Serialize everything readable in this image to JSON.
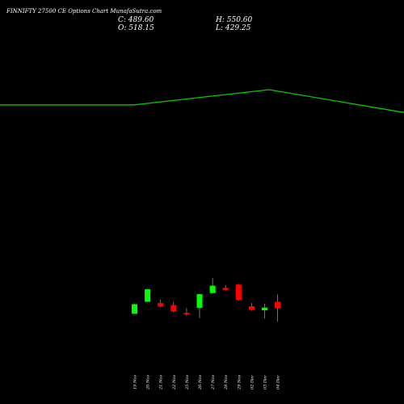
{
  "title": "FINNIFTY 27500  CE Options  Chart MunafaSutra.com",
  "ohlc": {
    "close": "C: 489.60",
    "open": "O: 518.15",
    "high": "H: 550.60",
    "low": "L: 429.25"
  },
  "colors": {
    "background": "#000000",
    "up": "#00ff00",
    "down": "#ff0000",
    "line": "#00cc00",
    "text": "#ffffff"
  },
  "chart_data": {
    "type": "candlestick",
    "title": "FINNIFTY 27500  CE Options  Chart MunafaSutra.com",
    "categories": [
      "19 Nov",
      "20 Nov",
      "21 Nov",
      "22 Nov",
      "25 Nov",
      "26 Nov",
      "27 Nov",
      "28 Nov",
      "29 Nov",
      "02 Dec",
      "03 Dec",
      "04 Dec"
    ],
    "candles": [
      {
        "date": "19 Nov",
        "open": 464,
        "high": 510,
        "low": 463,
        "close": 507,
        "dir": "up"
      },
      {
        "date": "20 Nov",
        "open": 518,
        "high": 575,
        "low": 517,
        "close": 574,
        "dir": "up"
      },
      {
        "date": "21 Nov",
        "open": 512,
        "high": 526,
        "low": 494,
        "close": 497,
        "dir": "down"
      },
      {
        "date": "22 Nov",
        "open": 503,
        "high": 517,
        "low": 470,
        "close": 475,
        "dir": "down"
      },
      {
        "date": "25 Nov",
        "open": 468,
        "high": 489,
        "low": 456,
        "close": 462,
        "dir": "down"
      },
      {
        "date": "26 Nov",
        "open": 491,
        "high": 553,
        "low": 445,
        "close": 552,
        "dir": "up"
      },
      {
        "date": "27 Nov",
        "open": 557,
        "high": 624,
        "low": 556,
        "close": 590,
        "dir": "up"
      },
      {
        "date": "28 Nov",
        "open": 580,
        "high": 592,
        "low": 569,
        "close": 571,
        "dir": "down"
      },
      {
        "date": "29 Nov",
        "open": 595,
        "high": 597,
        "low": 524,
        "close": 527,
        "dir": "down"
      },
      {
        "date": "02 Dec",
        "open": 498,
        "high": 512,
        "low": 478,
        "close": 482,
        "dir": "down"
      },
      {
        "date": "03 Dec",
        "open": 480,
        "high": 509,
        "low": 443,
        "close": 492,
        "dir": "up"
      },
      {
        "date": "04 Dec",
        "open": 518,
        "high": 551,
        "low": 429,
        "close": 490,
        "dir": "down"
      }
    ],
    "overlay_line": {
      "values": [
        1400,
        1400,
        1400,
        1400,
        1400,
        1400,
        1400,
        1400,
        1400,
        1400,
        1400,
        1400,
        1400,
        1400,
        1400,
        1400,
        1400,
        1400,
        1400,
        1400,
        1400,
        1400,
        1400,
        1400,
        1400,
        1400,
        1400,
        1400,
        1400,
        1400,
        1400,
        1400,
        1400,
        1400,
        1400,
        1400,
        1400,
        1400,
        1400,
        1400,
        1400,
        1400,
        1400,
        1400,
        1400,
        1400,
        1400,
        1400,
        1400,
        1400,
        1400,
        1400,
        1400,
        1400,
        1400,
        1400,
        1400,
        1400,
        1400,
        1400,
        1400,
        1400,
        1400,
        1400,
        1400,
        1400,
        1400,
        1400,
        1400,
        1400,
        1400,
        1400,
        1400,
        1400,
        1400,
        1400,
        1400,
        1400,
        1400,
        1400,
        1400,
        1400,
        1400,
        1400,
        1400,
        1400,
        1400,
        1400,
        1400,
        1400,
        1400,
        1400,
        1400,
        1400,
        1400,
        1400,
        1400,
        1400,
        1400,
        1400,
        1400,
        1400,
        1400,
        1400,
        1400,
        1400,
        1400,
        1400,
        1400,
        1400,
        1400,
        1400,
        1400,
        1400,
        1400,
        1400,
        1400,
        1400,
        1400,
        1400,
        1400,
        1400,
        1400,
        1400,
        1400,
        1400,
        1400,
        1400,
        1400,
        1400,
        1400,
        1400,
        1400,
        1400,
        1400,
        1400,
        1400,
        1400,
        1400,
        1400,
        1400,
        1400,
        1400,
        1400,
        1400,
        1400,
        1400,
        1400,
        1400,
        1400,
        1400,
        1400,
        1400,
        1400,
        1400,
        1400,
        1400,
        1400,
        1400,
        1400,
        1400,
        1400,
        1400,
        1400,
        1400,
        1400,
        1400,
        1400
      ],
      "keypoints": [
        1400,
        1400,
        1468,
        1366
      ],
      "keypoint_index": [
        0,
        166,
        333,
        500
      ]
    },
    "ylim": [
      60,
      1870
    ],
    "xlabel": "",
    "ylabel": "",
    "grid": false
  }
}
